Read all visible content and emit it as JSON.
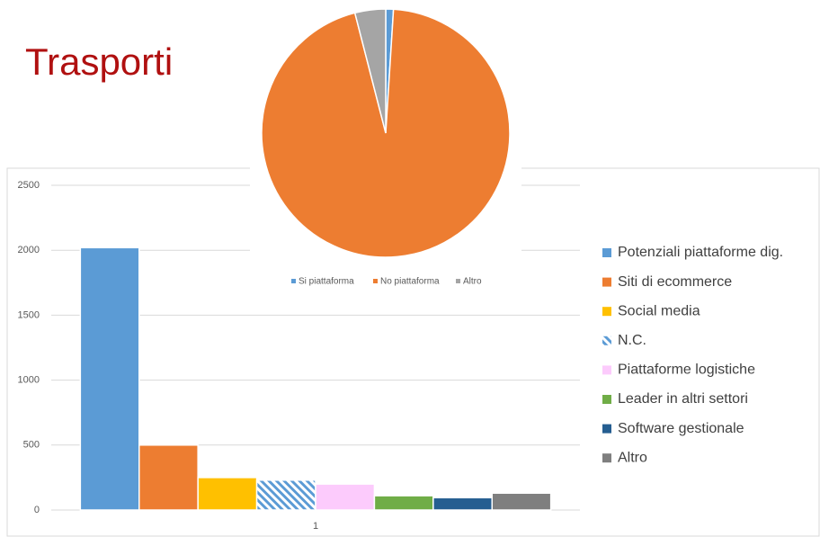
{
  "title": "Trasporti",
  "chart_data": [
    {
      "type": "bar",
      "categories": [
        "1"
      ],
      "series": [
        {
          "name": "Potenziali piattaforme dig.",
          "color": "#5b9bd5",
          "values": [
            2020
          ]
        },
        {
          "name": "Siti di ecommerce",
          "color": "#ed7d31",
          "values": [
            500
          ]
        },
        {
          "name": "Social media",
          "color": "#ffc000",
          "values": [
            250
          ]
        },
        {
          "name": "N.C.",
          "color": "#5b9bd5",
          "pattern": "hatch",
          "values": [
            230
          ]
        },
        {
          "name": "Piattaforme logistiche",
          "color": "#fccbfc",
          "values": [
            200
          ]
        },
        {
          "name": "Leader in altri settori",
          "color": "#70ad47",
          "values": [
            110
          ]
        },
        {
          "name": "Software gestionale",
          "color": "#255e91",
          "values": [
            95
          ]
        },
        {
          "name": "Altro",
          "color": "#7f7f7f",
          "values": [
            130
          ]
        }
      ],
      "ylim": [
        0,
        2500
      ],
      "yticks": [
        0,
        500,
        1000,
        1500,
        2000,
        2500
      ],
      "grid": true,
      "legend": "right"
    },
    {
      "type": "pie",
      "categories": [
        "Si piattaforma",
        "No piattaforma",
        "Altro"
      ],
      "values": [
        1,
        95,
        4
      ],
      "colors": [
        "#5b9bd5",
        "#ed7d31",
        "#a5a5a5"
      ],
      "legend": "bottom"
    }
  ]
}
